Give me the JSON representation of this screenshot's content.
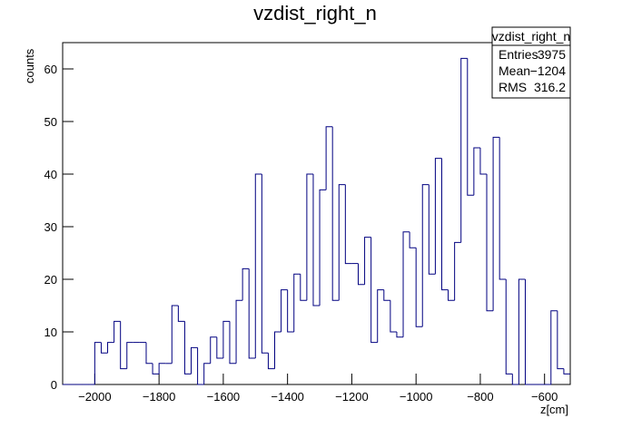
{
  "chart_data": {
    "type": "histogram",
    "title": "vzdist_right_n",
    "x_label": "z[cm]",
    "y_label": "counts",
    "color": "#000080",
    "bins": [
      -2100,
      -2080,
      -2060,
      -2040,
      -2020,
      -2000,
      -1980,
      -1960,
      -1940,
      -1920,
      -1900,
      -1880,
      -1860,
      -1840,
      -1820,
      -1800,
      -1780,
      -1760,
      -1740,
      -1720,
      -1700,
      -1680,
      -1660,
      -1640,
      -1620,
      -1600,
      -1580,
      -1560,
      -1540,
      -1520,
      -1500,
      -1480,
      -1460,
      -1440,
      -1420,
      -1400,
      -1380,
      -1360,
      -1340,
      -1320,
      -1300,
      -1280,
      -1260,
      -1240,
      -1220,
      -1200,
      -1180,
      -1160,
      -1140,
      -1120,
      -1100,
      -1080,
      -1060,
      -1040,
      -1020,
      -1000,
      -980,
      -960,
      -940,
      -920,
      -900,
      -880,
      -860,
      -840,
      -820,
      -800,
      -780,
      -760,
      -740,
      -720,
      -700,
      -680,
      -660,
      -640,
      -620,
      -600,
      -580,
      -560,
      -540,
      -520
    ],
    "values": [
      0,
      0,
      0,
      0,
      0,
      8,
      6,
      8,
      12,
      3,
      8,
      8,
      8,
      4,
      2,
      4,
      4,
      15,
      12,
      2,
      7,
      0,
      4,
      9,
      5,
      12,
      4,
      16,
      22,
      5,
      40,
      6,
      3,
      10,
      18,
      10,
      21,
      16,
      40,
      15,
      37,
      49,
      16,
      38,
      23,
      23,
      19,
      28,
      8,
      18,
      16,
      10,
      9,
      29,
      26,
      11,
      38,
      21,
      43,
      18,
      16,
      27,
      62,
      36,
      45,
      40,
      14,
      47,
      20,
      2,
      0,
      20,
      0,
      0,
      0,
      0,
      14,
      3,
      2
    ],
    "xlim": [
      -2100,
      -520
    ],
    "ylim": [
      0,
      65
    ],
    "xticks": [
      {
        "value": -2000,
        "label": "−2000"
      },
      {
        "value": -1800,
        "label": "−1800"
      },
      {
        "value": -1600,
        "label": "−1600"
      },
      {
        "value": -1400,
        "label": "−1400"
      },
      {
        "value": -1200,
        "label": "−1200"
      },
      {
        "value": -1000,
        "label": "−1000"
      },
      {
        "value": -800,
        "label": "−800"
      },
      {
        "value": -600,
        "label": "−600"
      }
    ],
    "yticks": [
      0,
      10,
      20,
      30,
      40,
      50,
      60
    ],
    "stats": {
      "title": "vzdist_right_n",
      "rows": [
        {
          "name": "Entries",
          "value": 3975
        },
        {
          "name": "Mean",
          "value": {
            "value": -1204,
            "label": "−1204"
          }
        },
        {
          "name": "RMS",
          "value": 316.2
        }
      ]
    }
  }
}
